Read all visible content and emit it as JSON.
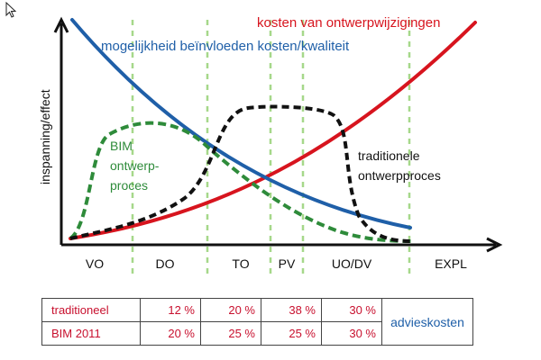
{
  "labels": {
    "y_axis": "inspanning/effect",
    "curve_red": "kosten van ontwerpwijzigingen",
    "curve_blue": "mogelijkheid beïnvloeden kosten/kwaliteit",
    "curve_green": [
      "BIM",
      "ontwerp-",
      "proces"
    ],
    "curve_black": [
      "traditionele",
      "ontwerpproces"
    ]
  },
  "phases": [
    "VO",
    "DO",
    "TO",
    "PV",
    "UO/DV",
    "EXPL"
  ],
  "table": {
    "rows": [
      {
        "label": "traditioneel",
        "values": [
          "12 %",
          "20 %",
          "38 %",
          "30 %"
        ]
      },
      {
        "label": "BIM 2011",
        "values": [
          "20 %",
          "25 %",
          "25 %",
          "30 %"
        ]
      }
    ],
    "side_label": "advieskosten"
  },
  "colors": {
    "red": "#d7141e",
    "blue": "#1f5fa8",
    "green": "#2e8b3a",
    "black": "#111111",
    "phase_lines": "#a6d88a",
    "table_text": "#c8102e"
  }
}
